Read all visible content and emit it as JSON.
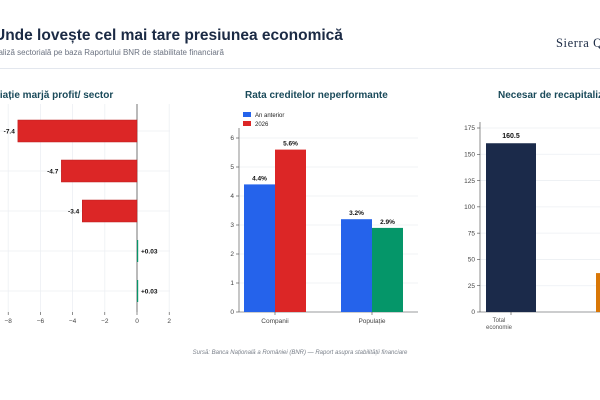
{
  "header": {
    "title": "Unde lovește cel mai tare presiunea economică",
    "subtitle": "naliză sectorială pe baza Raportului BNR de stabilitate financiară",
    "brand": "Sierra Q"
  },
  "footer": {
    "source": "Sursă: Banca Națională a României (BNR) — Raport asupra stabilității financiare"
  },
  "colors": {
    "red": "#dc2626",
    "blue": "#2563eb",
    "green": "#059669",
    "navy": "#1b2a4a",
    "orange": "#d97706"
  },
  "chart_data": [
    {
      "type": "bar",
      "orientation": "horizontal",
      "title": "riație marjă profit/ sector",
      "categories": [
        "",
        "",
        "",
        "",
        ""
      ],
      "values": [
        -7.4,
        -4.7,
        -3.4,
        0.03,
        0.03
      ],
      "value_labels": [
        "-7.4",
        "-4.7",
        "-3.4",
        "+0.03",
        "+0.03"
      ],
      "xlim": [
        -8.5,
        2
      ],
      "xticks": [
        -8,
        -6,
        -4,
        -2,
        0,
        2
      ],
      "xtick_labels": [
        "−8",
        "−6",
        "−4",
        "−2",
        "0",
        "2"
      ],
      "grid": true
    },
    {
      "type": "bar",
      "title": "Rata creditelor neperformante",
      "categories": [
        "Companii",
        "Populație"
      ],
      "series": [
        {
          "name": "An anterior",
          "values": [
            4.4,
            3.2
          ],
          "labels": [
            "4.4%",
            "3.2%"
          ],
          "color": "#2563eb"
        },
        {
          "name": "2026",
          "values": [
            5.6,
            2.9
          ],
          "labels": [
            "5.6%",
            "2.9%"
          ],
          "color": "#dc2626",
          "alt_colors": [
            "#dc2626",
            "#059669"
          ]
        }
      ],
      "ylim": [
        0,
        6
      ],
      "yticks": [
        0,
        1,
        2,
        3,
        4,
        5,
        6
      ],
      "legend": "top-left",
      "grid": true
    },
    {
      "type": "bar",
      "title": "Necesar de recapitaliza",
      "categories": [
        "Total\neconomie",
        ""
      ],
      "values": [
        160.5,
        37
      ],
      "value_labels": [
        "160.5",
        ""
      ],
      "colors": [
        "#1b2a4a",
        "#d97706"
      ],
      "ylim": [
        0,
        175
      ],
      "yticks": [
        0,
        25,
        50,
        75,
        100,
        125,
        150,
        175
      ],
      "grid": true
    }
  ]
}
